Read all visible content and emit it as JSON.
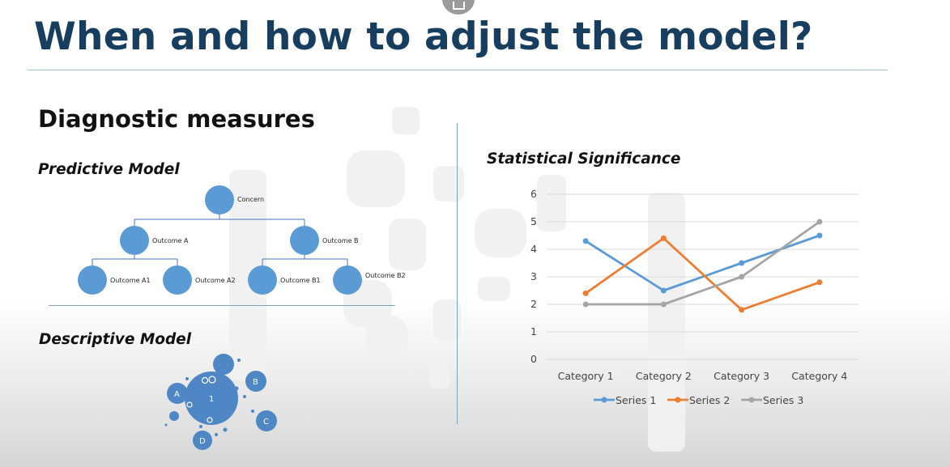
{
  "slide": {
    "title": "When and how to adjust the model?",
    "section_heading": "Diagnostic measures",
    "predictive_heading": "Predictive Model",
    "descriptive_heading": "Descriptive Model"
  },
  "predictive_tree": {
    "root": "Concern",
    "level1": [
      "Outcome A",
      "Outcome B"
    ],
    "level2": [
      "Outcome A1",
      "Outcome A2",
      "Outcome B1",
      "Outcome B2"
    ]
  },
  "descriptive_diagram": {
    "center": "1",
    "satellites": [
      "A",
      "B",
      "C",
      "D"
    ],
    "small_marks": [
      "o",
      "O",
      "o",
      "o"
    ]
  },
  "chart_data": {
    "type": "line",
    "title": "Statistical Significance",
    "categories": [
      "Category 1",
      "Category 2",
      "Category 3",
      "Category 4"
    ],
    "ylim": [
      0,
      6
    ],
    "yticks": [
      0,
      1,
      2,
      3,
      4,
      5,
      6
    ],
    "grid": true,
    "legend": "bottom",
    "series": [
      {
        "name": "Series 1",
        "values": [
          4.3,
          2.5,
          3.5,
          4.5
        ],
        "color": "#5b9bd5"
      },
      {
        "name": "Series 2",
        "values": [
          2.4,
          4.4,
          1.8,
          2.8
        ],
        "color": "#ed7d31"
      },
      {
        "name": "Series 3",
        "values": [
          2.0,
          2.0,
          3.0,
          5.0
        ],
        "color": "#a5a5a5"
      }
    ]
  }
}
